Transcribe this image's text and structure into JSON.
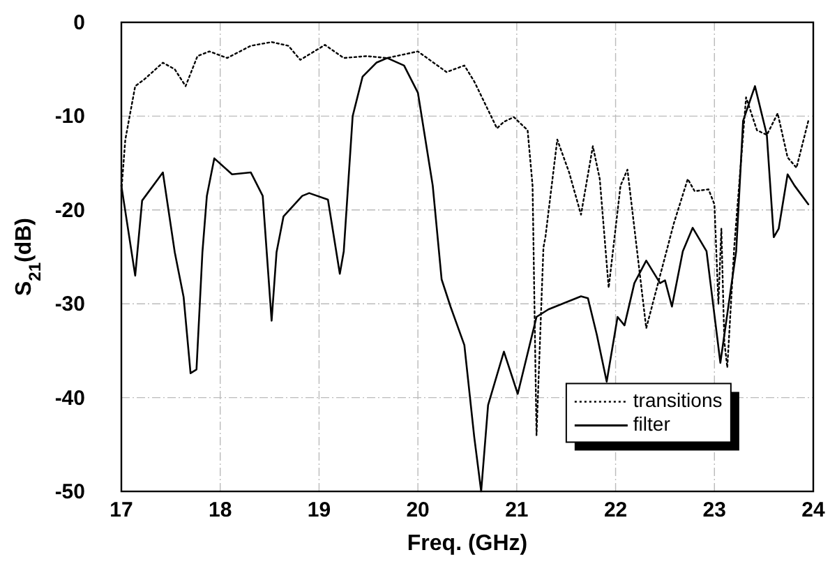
{
  "chart_data": {
    "type": "line",
    "xlabel": "Freq. (GHz)",
    "ylabel": "S$_{21}$(dB)",
    "xlim": [
      17,
      24
    ],
    "ylim": [
      -50,
      0
    ],
    "xticks": [
      17,
      18,
      19,
      20,
      21,
      22,
      23,
      24
    ],
    "yticks": [
      -50,
      -40,
      -30,
      -20,
      -10,
      0
    ],
    "grid": true,
    "legend": "bottom right",
    "marker": "none",
    "series": [
      {
        "name": "transitions",
        "color": "#000000",
        "line_style": "dotted",
        "x": [
          17,
          17.04,
          17.14,
          17.23,
          17.42,
          17.54,
          17.65,
          17.77,
          17.89,
          18.07,
          18.31,
          18.52,
          18.69,
          18.81,
          19.06,
          19.25,
          19.48,
          19.69,
          20.0,
          20.29,
          20.47,
          20.57,
          20.8,
          20.87,
          20.97,
          21.11,
          21.16,
          21.2,
          21.27,
          21.29,
          21.41,
          21.53,
          21.65,
          21.77,
          21.84,
          21.93,
          22.05,
          22.12,
          22.31,
          22.59,
          22.73,
          22.8,
          22.94,
          23.0,
          23.04,
          23.07,
          23.1,
          23.13,
          23.2,
          23.32,
          23.43,
          23.53,
          23.64,
          23.74,
          23.83,
          23.95
        ],
        "values": [
          -18,
          -12.5,
          -6.8,
          -6.1,
          -4.3,
          -5,
          -6.8,
          -3.6,
          -3.1,
          -3.8,
          -2.5,
          -2.1,
          -2.5,
          -4,
          -2.4,
          -3.8,
          -3.6,
          -3.8,
          -3.1,
          -5.3,
          -4.6,
          -6.3,
          -11.3,
          -10.6,
          -10.1,
          -11.5,
          -17.4,
          -44,
          -24,
          -22.9,
          -12.5,
          -16,
          -20.5,
          -13.2,
          -16.7,
          -28.3,
          -17.4,
          -15.7,
          -32.6,
          -21.4,
          -16.7,
          -18,
          -17.8,
          -19.4,
          -30,
          -22,
          -34,
          -36.8,
          -24,
          -8,
          -11.5,
          -12,
          -9.7,
          -14.4,
          -15.5,
          -10.5
        ]
      },
      {
        "name": "filter",
        "color": "#000000",
        "line_style": "solid",
        "x": [
          17,
          17.14,
          17.21,
          17.42,
          17.54,
          17.63,
          17.7,
          17.76,
          17.82,
          17.865,
          17.94,
          18.12,
          18.31,
          18.43,
          18.52,
          18.57,
          18.64,
          18.83,
          18.9,
          19.09,
          19.21,
          19.25,
          19.34,
          19.44,
          19.58,
          19.69,
          19.86,
          20.0,
          20.15,
          20.24,
          20.33,
          20.47,
          20.57,
          20.64,
          20.71,
          20.87,
          21.01,
          21.2,
          21.32,
          21.65,
          21.72,
          21.81,
          21.91,
          22.02,
          22.09,
          22.19,
          22.31,
          22.45,
          22.5,
          22.57,
          22.68,
          22.78,
          22.92,
          23.06,
          23.22,
          23.29,
          23.41,
          23.53,
          23.6,
          23.65,
          23.74,
          23.81,
          23.95
        ],
        "values": [
          -17.4,
          -27,
          -19,
          -16,
          -24.5,
          -29.3,
          -37.4,
          -37,
          -24.5,
          -18.5,
          -14.5,
          -16.2,
          -16,
          -18.5,
          -31.8,
          -24.5,
          -20.7,
          -18.5,
          -18.2,
          -18.9,
          -26.8,
          -24.4,
          -10,
          -5.8,
          -4.3,
          -3.8,
          -4.6,
          -7.5,
          -17.4,
          -27.4,
          -30.3,
          -34.4,
          -44.2,
          -50,
          -40.8,
          -35.1,
          -39.6,
          -31.4,
          -30.6,
          -29.2,
          -29.4,
          -33.3,
          -38.3,
          -31.4,
          -32.3,
          -27.8,
          -25.4,
          -27.8,
          -27.5,
          -30.3,
          -24.4,
          -21.9,
          -24.4,
          -36.3,
          -24.4,
          -10.5,
          -6.8,
          -12,
          -22.9,
          -22,
          -16.2,
          -17.4,
          -19.4
        ]
      }
    ]
  }
}
